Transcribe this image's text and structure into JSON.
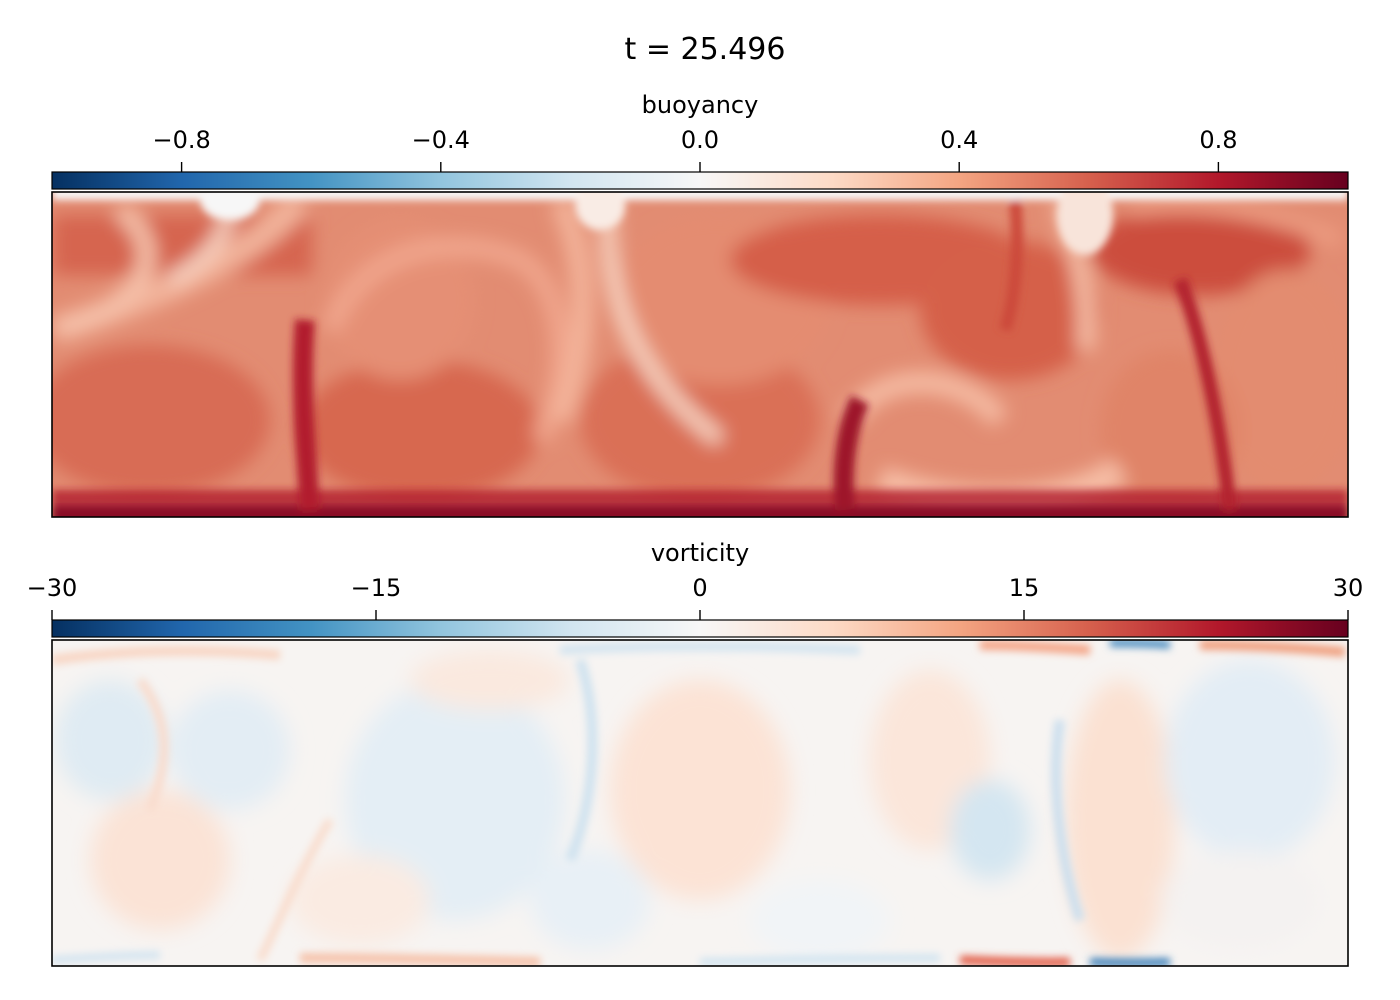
{
  "figure": {
    "title": "t = 25.496"
  },
  "colors": {
    "colormap": "RdBu_r",
    "stops": [
      "#053061",
      "#2166ac",
      "#4393c3",
      "#92c5de",
      "#d1e5f0",
      "#f7f7f7",
      "#fddbc7",
      "#f4a582",
      "#d6604d",
      "#b2182b",
      "#67001f"
    ]
  },
  "chart_data": [
    {
      "type": "heatmap",
      "field": "buoyancy",
      "colorbar": {
        "label": "buoyancy",
        "range": [
          -1.0,
          1.0
        ],
        "ticks": [
          -0.8,
          -0.4,
          0.0,
          0.4,
          0.8
        ],
        "tick_labels": [
          "−0.8",
          "−0.4",
          "0.0",
          "0.4",
          "0.8"
        ],
        "position": "top"
      },
      "x_ticks": "none",
      "y_ticks": "none",
      "description": "Rayleigh-Benard convection buoyancy field; bulk values about 0.45-0.55, bottom boundary layer near 1.0, top boundary layer near 0.0, with rising hot plumes and descending cool plumes"
    },
    {
      "type": "heatmap",
      "field": "vorticity",
      "colorbar": {
        "label": "vorticity",
        "range": [
          -30,
          30
        ],
        "ticks": [
          -30,
          -15,
          0,
          15,
          30
        ],
        "tick_labels": [
          "−30",
          "−15",
          "0",
          "15",
          "30"
        ],
        "position": "top"
      },
      "x_ticks": "none",
      "y_ticks": "none",
      "description": "vorticity field mostly within about -8 to 8 in the interior, alternating counter-rotating convection cells, stronger values of about -20 to 20 near the top and bottom walls"
    }
  ]
}
